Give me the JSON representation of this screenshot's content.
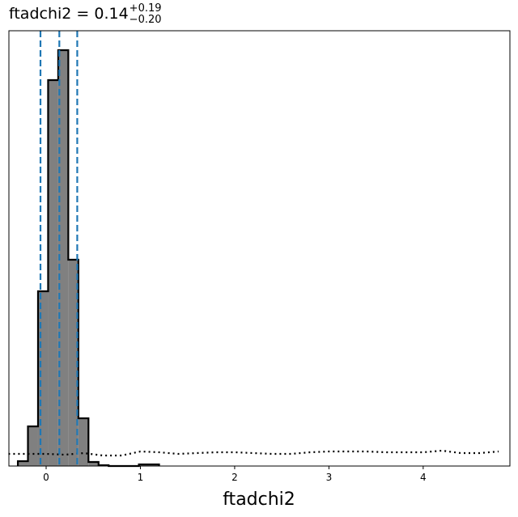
{
  "chart_data": {
    "type": "histogram",
    "title": "ftadchi2 = 0.14",
    "title_sup": "+0.19",
    "title_sub": "−0.20",
    "xlabel": "ftadchi2",
    "bins": [
      -0.3,
      -0.193,
      -0.086,
      0.021,
      0.128,
      0.235,
      0.342,
      0.449,
      0.556,
      0.663,
      0.77,
      0.877,
      0.984,
      1.091,
      1.198
    ],
    "values": [
      6,
      49,
      216,
      477,
      514,
      255,
      59,
      5,
      1,
      0,
      0,
      0,
      2,
      2
    ],
    "color": "#808080",
    "edgecolor": "#000000",
    "quantiles": [
      -0.06,
      0.14,
      0.33
    ],
    "quantile_color": "#1f77b4",
    "prior": {
      "x": [
        -0.4,
        -0.2,
        0,
        0.2,
        0.4,
        0.6,
        0.8,
        1.0,
        1.2,
        1.4,
        1.6,
        1.8,
        2.0,
        2.2,
        2.4,
        2.6,
        2.8,
        3.0,
        3.2,
        3.4,
        3.6,
        3.8,
        4.0,
        4.2,
        4.4,
        4.6,
        4.8
      ],
      "values": [
        15,
        15,
        15,
        14,
        16,
        13,
        13,
        18,
        17,
        15,
        16,
        17,
        17,
        16,
        15,
        15,
        17,
        18,
        18,
        18,
        17,
        17,
        17,
        19,
        16,
        16,
        18
      ]
    },
    "xlim": [
      -0.395,
      4.92
    ],
    "ylim": [
      0,
      538
    ],
    "xticks": [
      0,
      1,
      2,
      3,
      4
    ]
  }
}
